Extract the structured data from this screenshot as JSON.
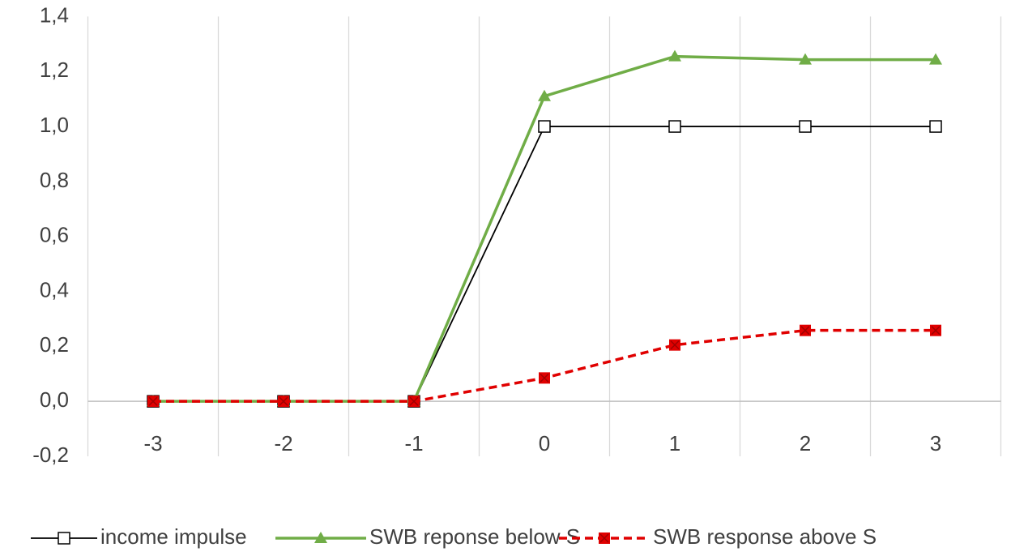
{
  "chart_data": {
    "type": "line",
    "categories": [
      "-3",
      "-2",
      "-1",
      "0",
      "1",
      "2",
      "3"
    ],
    "series": [
      {
        "name": "income impulse",
        "color": "#000000",
        "marker": "square-open",
        "dash": false,
        "values": [
          0,
          0,
          0,
          1,
          1,
          1,
          1
        ]
      },
      {
        "name": "SWB reponse below S",
        "color": "#70ad47",
        "marker": "triangle",
        "dash": false,
        "values": [
          0,
          0,
          0,
          1.11,
          1.255,
          1.243,
          1.243
        ]
      },
      {
        "name": "SWB response above S",
        "color": "#e00000",
        "marker": "square-x",
        "dash": true,
        "values": [
          0,
          0,
          0,
          0.085,
          0.205,
          0.258,
          0.258
        ]
      }
    ],
    "ylim": [
      -0.2,
      1.4
    ],
    "yticks": [
      {
        "value": -0.2,
        "label": "-0,2"
      },
      {
        "value": 0,
        "label": "0,0"
      },
      {
        "value": 0.2,
        "label": "0,2"
      },
      {
        "value": 0.4,
        "label": "0,4"
      },
      {
        "value": 0.6,
        "label": "0,6"
      },
      {
        "value": 0.8,
        "label": "0,8"
      },
      {
        "value": 1.0,
        "label": "1,0"
      },
      {
        "value": 1.2,
        "label": "1,2"
      },
      {
        "value": 1.4,
        "label": "1,4"
      }
    ],
    "grid": "vertical",
    "legend": "bottom"
  }
}
